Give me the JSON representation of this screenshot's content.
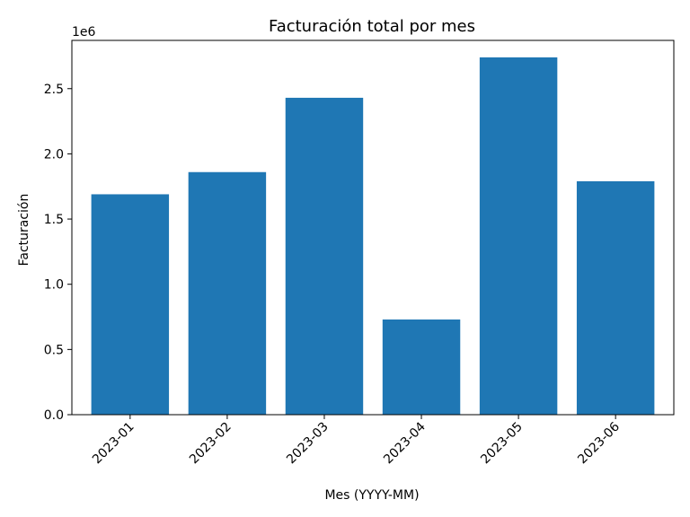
{
  "chart_data": {
    "type": "bar",
    "title": "Facturación total por mes",
    "xlabel": "Mes (YYYY-MM)",
    "ylabel": "Facturación",
    "y_offset_label": "1e6",
    "categories": [
      "2023-01",
      "2023-02",
      "2023-03",
      "2023-04",
      "2023-05",
      "2023-06"
    ],
    "values": [
      1690000,
      1860000,
      2430000,
      730000,
      2740000,
      1790000
    ],
    "ylim": [
      0,
      2870000
    ],
    "yticks": [
      0,
      500000,
      1000000,
      1500000,
      2000000,
      2500000
    ],
    "ytick_labels": [
      "0.0",
      "0.5",
      "1.0",
      "1.5",
      "2.0",
      "2.5"
    ],
    "bar_color": "#1f77b4",
    "grid": false,
    "legend": null
  }
}
